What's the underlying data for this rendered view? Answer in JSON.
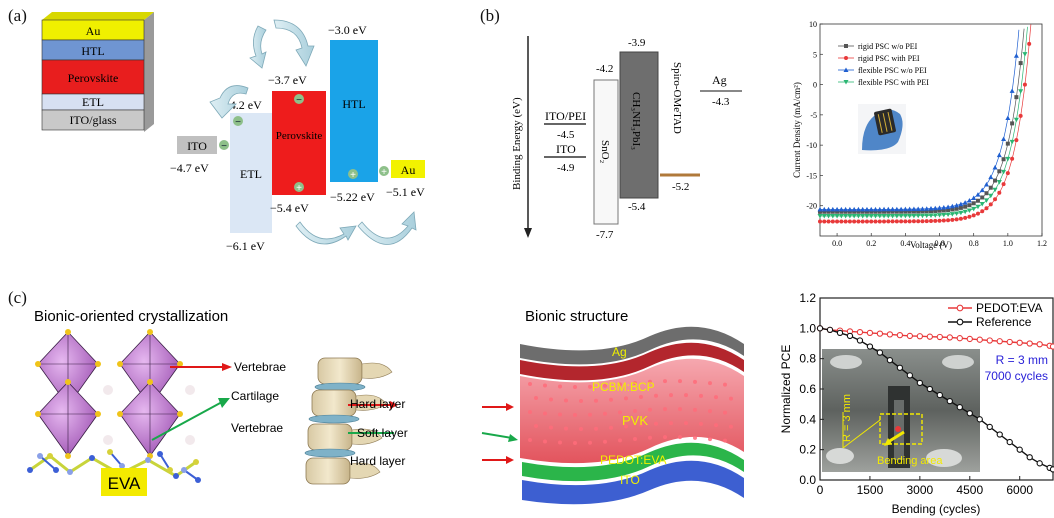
{
  "panel_labels": {
    "a": "(a)",
    "b": "(b)",
    "c": "(c)"
  },
  "panel_a": {
    "stack_layers": [
      "Au",
      "HTL",
      "Perovskite",
      "ETL",
      "ITO/glass"
    ],
    "levels": {
      "ito": {
        "name": "ITO",
        "value": "−4.7 eV"
      },
      "etl": {
        "name": "ETL",
        "top": "−4.2 eV",
        "bottom": "−6.1 eV"
      },
      "perovskite": {
        "name": "Perovskite",
        "top": "−3.7 eV",
        "bottom": "−5.4 eV"
      },
      "htl": {
        "name": "HTL",
        "top": "−3.0 eV",
        "bottom": "−5.22 eV"
      },
      "au": {
        "name": "Au",
        "value": "−5.1 eV"
      }
    },
    "charges": {
      "minus": "−",
      "plus": "+"
    }
  },
  "panel_b": {
    "ylabel": "Binding Energy (eV)",
    "ito_pei": {
      "name": "ITO/PEI",
      "value": "-4.5"
    },
    "ito": {
      "name": "ITO",
      "value": "-4.9"
    },
    "sno2": {
      "name": "SnO₂",
      "top": "-4.2",
      "bottom": "-7.7"
    },
    "perovskite": {
      "name": "CH₃NH₃PbI₃",
      "top": "-3.9",
      "bottom": "-5.4"
    },
    "spiro": {
      "name": "Spiro-OMeTAD",
      "value": "-5.2"
    },
    "ag": {
      "name": "Ag",
      "value": "-4.3"
    }
  },
  "chart_b": {
    "type": "scatter",
    "xlabel": "Voltage (V)",
    "ylabel": "Current Density (mA/cm²)",
    "xlim": [
      -0.1,
      1.2
    ],
    "ylim": [
      -25,
      10
    ],
    "x_ticks": [
      "0.0",
      "0.2",
      "0.4",
      "0.6",
      "0.8",
      "1.0",
      "1.2"
    ],
    "y_ticks": [
      "10",
      "5",
      "0",
      "-5",
      "-10",
      "-15",
      "-20"
    ],
    "series": [
      {
        "name": "rigid PSC w/o PEI",
        "color": "#555555",
        "marker": "square",
        "jsc": -21.0,
        "voc": 1.06
      },
      {
        "name": "rigid PSC with PEI",
        "color": "#e8393a",
        "marker": "circle",
        "jsc": -22.6,
        "voc": 1.1
      },
      {
        "name": "flexible PSC w/o PEI",
        "color": "#1f5fd0",
        "marker": "triangle-up",
        "jsc": -20.6,
        "voc": 1.03
      },
      {
        "name": "flexible PSC with PEI",
        "color": "#2bb673",
        "marker": "triangle-down",
        "jsc": -21.7,
        "voc": 1.08
      }
    ]
  },
  "panel_c": {
    "title_left": "Bionic-oriented crystallization",
    "title_mid": "Bionic structure",
    "eva_label": "EVA",
    "spine_labels": [
      "Vertebrae",
      "Cartilage",
      "Vertebrae"
    ],
    "layer_labels": [
      "Hard layer",
      "Soft layer",
      "Hard layer"
    ],
    "stack_labels": [
      "Ag",
      "PCBM:BCP",
      "PVK",
      "PEDOT:EVA",
      "ITO"
    ]
  },
  "chart_c": {
    "type": "line",
    "xlabel": "Bending (cycles)",
    "ylabel": "Normalized PCE",
    "xlim": [
      0,
      7000
    ],
    "ylim": [
      0.0,
      1.2
    ],
    "x_ticks": [
      "0",
      "1500",
      "3000",
      "4500",
      "6000"
    ],
    "y_ticks": [
      "0.0",
      "0.2",
      "0.4",
      "0.6",
      "0.8",
      "1.0",
      "1.2"
    ],
    "annotation": {
      "r": "R = 3 mm",
      "cycles": "7000 cycles"
    },
    "inset_labels": {
      "r": "R = 3 mm",
      "area": "Bending area"
    },
    "series": [
      {
        "name": "PEDOT:EVA",
        "color": "#e8393a",
        "x": [
          0,
          300,
          600,
          900,
          1200,
          1500,
          1800,
          2100,
          2400,
          2700,
          3000,
          3300,
          3600,
          3900,
          4200,
          4500,
          4800,
          5100,
          5400,
          5700,
          6000,
          6300,
          6600,
          6900,
          7000
        ],
        "y": [
          1.0,
          0.99,
          0.985,
          0.98,
          0.975,
          0.97,
          0.965,
          0.96,
          0.955,
          0.95,
          0.948,
          0.945,
          0.943,
          0.94,
          0.935,
          0.93,
          0.925,
          0.92,
          0.915,
          0.91,
          0.905,
          0.9,
          0.895,
          0.885,
          0.88
        ]
      },
      {
        "name": "Reference",
        "color": "#111111",
        "x": [
          0,
          300,
          600,
          900,
          1200,
          1500,
          1800,
          2100,
          2400,
          2700,
          3000,
          3300,
          3600,
          3900,
          4200,
          4500,
          4800,
          5100,
          5400,
          5700,
          6000,
          6300,
          6600,
          6900,
          7000
        ],
        "y": [
          1.0,
          0.99,
          0.97,
          0.95,
          0.92,
          0.88,
          0.84,
          0.79,
          0.74,
          0.69,
          0.64,
          0.6,
          0.56,
          0.52,
          0.48,
          0.44,
          0.4,
          0.35,
          0.3,
          0.25,
          0.2,
          0.15,
          0.11,
          0.08,
          0.07
        ]
      }
    ]
  }
}
